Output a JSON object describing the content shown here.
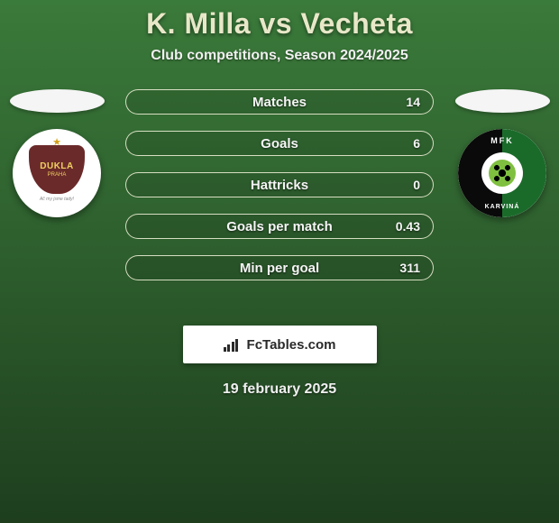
{
  "header": {
    "title": "K. Milla vs Vecheta",
    "subtitle": "Club competitions, Season 2024/2025"
  },
  "date": "19 february 2025",
  "banner": {
    "text": "FcTables.com"
  },
  "left_club": {
    "name": "DUKLA",
    "sub": "PRAHA",
    "tagline": "Ač my jsme tady!",
    "shield_bg": "#6b2a2a",
    "text_color": "#f0d060"
  },
  "right_club": {
    "top_text": "MFK",
    "bottom_text": "KARVINÁ"
  },
  "stats": [
    {
      "label": "Matches",
      "value": "14"
    },
    {
      "label": "Goals",
      "value": "6"
    },
    {
      "label": "Hattricks",
      "value": "0"
    },
    {
      "label": "Goals per match",
      "value": "0.43"
    },
    {
      "label": "Min per goal",
      "value": "311"
    }
  ],
  "style": {
    "bg_gradient_top": "#3a7a3a",
    "bg_gradient_mid": "#2d5d2d",
    "bg_gradient_bot": "#1e3e1e",
    "title_color": "#e8e8c8",
    "pill_border": "rgba(245,245,220,0.85)",
    "pill_text": "#f5f5f5",
    "banner_bg": "#ffffff",
    "banner_text": "#2a2a2a"
  }
}
